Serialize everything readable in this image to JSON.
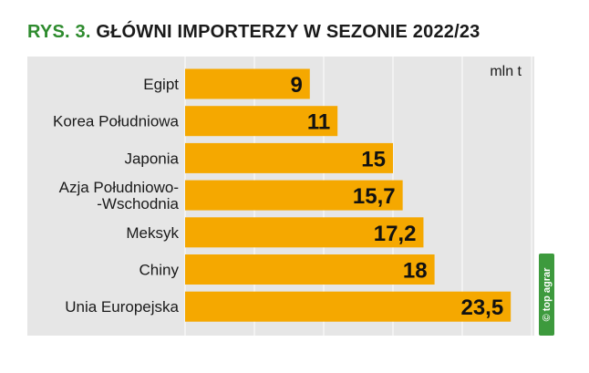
{
  "figure": {
    "number": "RYS. 3.",
    "title": "GŁÓWNI IMPORTERZY W SEZONIE 2022/23"
  },
  "watermark": {
    "text": "© top agrar"
  },
  "colors": {
    "bar": "#f5a800",
    "panel": "#e6e6e6",
    "grid": "#ffffff",
    "figure_number": "#2e8b2e",
    "watermark": "#3d9a3d"
  },
  "chart_data": {
    "type": "bar",
    "orientation": "horizontal",
    "title": "GŁÓWNI IMPORTERZY W SEZONIE 2022/23",
    "unit": "mln t",
    "categories": [
      "Egipt",
      "Korea Południowa",
      "Japonia",
      "Azja Południowo-\n-Wschodnia",
      "Meksyk",
      "Chiny",
      "Unia Europejska"
    ],
    "values": [
      9,
      11,
      15,
      15.7,
      17.2,
      18,
      23.5
    ],
    "value_labels": [
      "9",
      "11",
      "15",
      "15,7",
      "17,2",
      "18",
      "23,5"
    ],
    "xlim": [
      0,
      25
    ],
    "grid": true
  }
}
